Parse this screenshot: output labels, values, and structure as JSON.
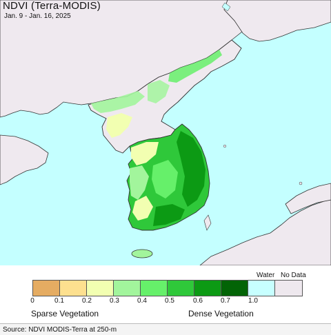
{
  "header": {
    "title": "NDVI (Terra-MODIS)",
    "date_range": "Jan. 9 - Jan. 16, 2025"
  },
  "map": {
    "water_color": "#c4ffff",
    "land_nodata_color": "#efe9ef",
    "border_color": "#555555"
  },
  "legend": {
    "swatches": [
      {
        "color": "#e5ac62"
      },
      {
        "color": "#fde08f"
      },
      {
        "color": "#f2ffb1"
      },
      {
        "color": "#a2f59c"
      },
      {
        "color": "#66f06a"
      },
      {
        "color": "#2fc83a"
      },
      {
        "color": "#0c9a14"
      },
      {
        "color": "#036406"
      },
      {
        "color": "#c7ffff"
      },
      {
        "color": "#eee8ee"
      }
    ],
    "ticks": [
      "0",
      "0.1",
      "0.2",
      "0.3",
      "0.4",
      "0.5",
      "0.6",
      "0.7",
      "1.0"
    ],
    "water_label": "Water",
    "nodata_label": "No Data",
    "sparse_label": "Sparse Vegetation",
    "dense_label": "Dense Vegetation"
  },
  "footer": {
    "source": "Source: NDVI MODIS-Terra at 250-m"
  }
}
